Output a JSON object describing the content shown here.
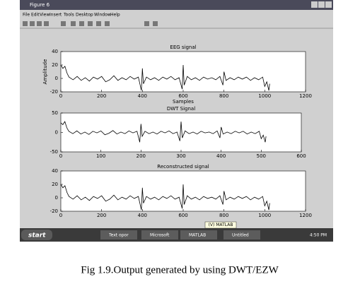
{
  "window": {
    "title": "Figure 6",
    "menu": [
      "File",
      "Edit",
      "View",
      "Insert",
      "Tools",
      "Desktop",
      "Window",
      "Help"
    ]
  },
  "taskbar": {
    "start": "start",
    "items": [
      "Text opor",
      "Microsoft",
      "MATLAB",
      "Untitled"
    ],
    "tooltip": "(V) MATLAB",
    "clock": "4:50 PM"
  },
  "caption": "Fig 1.9.Output generated by using DWT/EZW",
  "chart_data": [
    {
      "type": "line",
      "title": "EEG signal",
      "x_label": "Samples",
      "y_label": "Amplitude",
      "xlim": [
        0,
        1200
      ],
      "xticks": [
        0,
        200,
        400,
        600,
        800,
        1000,
        1200
      ],
      "ylim": [
        -20,
        40
      ],
      "yticks": [
        -20,
        0,
        20,
        40
      ],
      "series": [
        {
          "color": "#000000",
          "x": [
            0,
            10,
            20,
            30,
            40,
            60,
            80,
            100,
            120,
            140,
            160,
            180,
            200,
            220,
            240,
            260,
            280,
            300,
            320,
            340,
            360,
            380,
            395,
            400,
            405,
            420,
            440,
            460,
            480,
            500,
            520,
            540,
            560,
            580,
            595,
            600,
            605,
            620,
            640,
            660,
            680,
            700,
            720,
            740,
            760,
            780,
            795,
            800,
            810,
            830,
            850,
            870,
            890,
            910,
            930,
            950,
            970,
            990,
            1000,
            1010,
            1020,
            1024
          ],
          "values": [
            20,
            15,
            18,
            8,
            2,
            -2,
            3,
            -3,
            1,
            -4,
            2,
            -1,
            3,
            -5,
            -2,
            4,
            -3,
            1,
            -2,
            3,
            -1,
            2,
            -18,
            15,
            -8,
            2,
            -2,
            1,
            -3,
            2,
            -1,
            3,
            -2,
            1,
            -16,
            20,
            -10,
            3,
            -2,
            1,
            -3,
            2,
            -1,
            1,
            -2,
            3,
            -10,
            10,
            -3,
            1,
            -2,
            2,
            -1,
            2,
            -3,
            1,
            -2,
            2,
            -12,
            -5,
            -18,
            -8
          ]
        }
      ]
    },
    {
      "type": "line",
      "title": "DWT Signal",
      "xlim": [
        0,
        600
      ],
      "xticks": [
        0,
        100,
        200,
        300,
        400,
        500,
        600
      ],
      "ylim": [
        -50,
        50
      ],
      "yticks": [
        -50,
        0,
        50
      ],
      "series": [
        {
          "color": "#000000",
          "x": [
            0,
            5,
            10,
            15,
            20,
            30,
            40,
            50,
            60,
            70,
            80,
            90,
            100,
            110,
            120,
            130,
            140,
            150,
            160,
            170,
            180,
            190,
            197,
            200,
            203,
            210,
            220,
            230,
            240,
            250,
            260,
            270,
            280,
            290,
            297,
            300,
            303,
            310,
            320,
            330,
            340,
            350,
            360,
            370,
            380,
            390,
            397,
            400,
            405,
            415,
            425,
            435,
            445,
            455,
            465,
            475,
            485,
            495,
            500,
            505,
            510,
            512
          ],
          "values": [
            25,
            20,
            28,
            12,
            3,
            -3,
            4,
            -4,
            1,
            -5,
            3,
            -1,
            4,
            -6,
            -2,
            5,
            -4,
            1,
            -3,
            4,
            -1,
            3,
            -25,
            22,
            -10,
            3,
            -3,
            1,
            -4,
            3,
            -1,
            4,
            -3,
            1,
            -22,
            28,
            -14,
            4,
            -3,
            1,
            -4,
            3,
            -1,
            1,
            -3,
            4,
            -14,
            14,
            -4,
            1,
            -3,
            3,
            -1,
            3,
            -4,
            1,
            -3,
            3,
            -16,
            -7,
            -25,
            -10
          ]
        }
      ]
    },
    {
      "type": "line",
      "title": "Reconstructed signal",
      "xlim": [
        0,
        1200
      ],
      "xticks": [
        0,
        200,
        400,
        600,
        800,
        1000,
        1200
      ],
      "ylim": [
        -20,
        40
      ],
      "yticks": [
        -20,
        0,
        20,
        40
      ],
      "series": [
        {
          "color": "#000000",
          "x": [
            0,
            10,
            20,
            30,
            40,
            60,
            80,
            100,
            120,
            140,
            160,
            180,
            200,
            220,
            240,
            260,
            280,
            300,
            320,
            340,
            360,
            380,
            395,
            400,
            405,
            420,
            440,
            460,
            480,
            500,
            520,
            540,
            560,
            580,
            595,
            600,
            605,
            620,
            640,
            660,
            680,
            700,
            720,
            740,
            760,
            780,
            795,
            800,
            810,
            830,
            850,
            870,
            890,
            910,
            930,
            950,
            970,
            990,
            1000,
            1010,
            1020,
            1024
          ],
          "values": [
            20,
            15,
            18,
            8,
            2,
            -2,
            3,
            -3,
            1,
            -4,
            2,
            -1,
            3,
            -5,
            -2,
            4,
            -3,
            1,
            -2,
            3,
            -1,
            2,
            -18,
            15,
            -8,
            2,
            -2,
            1,
            -3,
            2,
            -1,
            3,
            -2,
            1,
            -16,
            20,
            -10,
            3,
            -2,
            1,
            -3,
            2,
            -1,
            1,
            -2,
            3,
            -10,
            10,
            -3,
            1,
            -2,
            2,
            -1,
            2,
            -3,
            1,
            -2,
            2,
            -12,
            -5,
            -18,
            -8
          ]
        }
      ]
    }
  ]
}
